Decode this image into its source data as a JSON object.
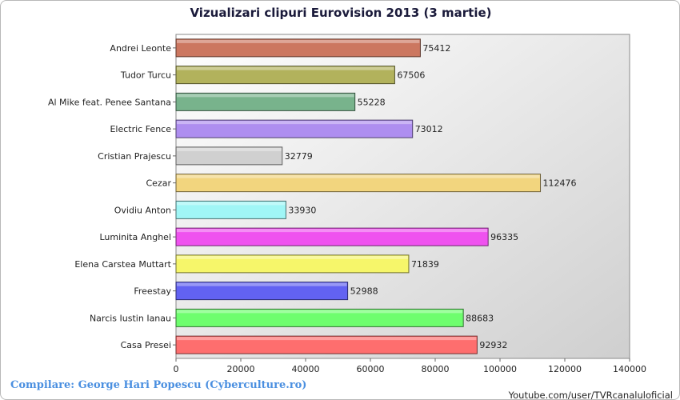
{
  "chart_data": {
    "type": "bar",
    "orientation": "horizontal",
    "title": "Vizualizari clipuri Eurovision 2013 (3 martie)",
    "categories": [
      "Andrei Leonte",
      "Tudor Turcu",
      "Al Mike feat. Penee Santana",
      "Electric Fence",
      "Cristian Prajescu",
      "Cezar",
      "Ovidiu Anton",
      "Luminita Anghel",
      "Elena Carstea Muttart",
      "Freestay",
      "Narcis Iustin Ianau",
      "Casa Presei"
    ],
    "values": [
      75412,
      67506,
      55228,
      73012,
      32779,
      112476,
      33930,
      96335,
      71839,
      52988,
      88683,
      92932
    ],
    "colors": [
      "#cc7760",
      "#b2b25c",
      "#78b38c",
      "#ae8ef0",
      "#d0d0d0",
      "#f2d57e",
      "#a0f6f6",
      "#ef52ef",
      "#f6f66a",
      "#6262f2",
      "#6efe6e",
      "#fe6e6e"
    ],
    "xlim": [
      0,
      140000
    ],
    "xticks": [
      "0",
      "20000",
      "40000",
      "60000",
      "80000",
      "100000",
      "120000",
      "140000"
    ],
    "xlabel": "",
    "ylabel": "",
    "grid": false,
    "legend": "none"
  },
  "footer": {
    "credit": "Compilare: George Hari Popescu (Cyberculture.ro)",
    "source": "Youtube.com/user/TVRcanaluloficial"
  }
}
